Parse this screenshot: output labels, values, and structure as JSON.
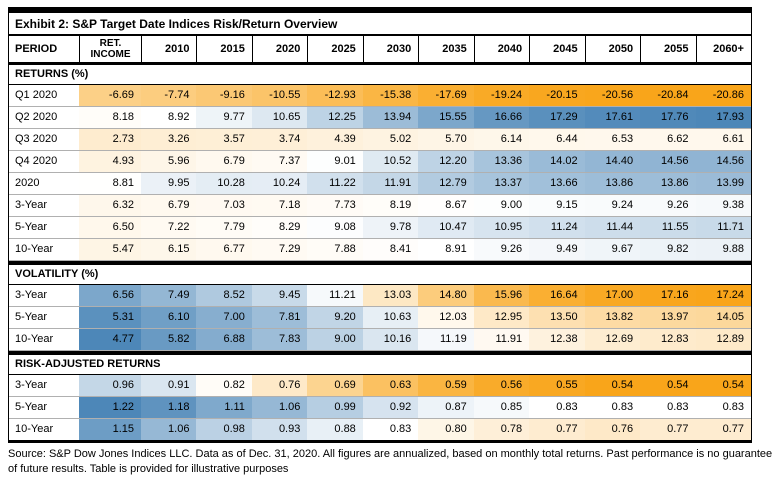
{
  "title": "Exhibit 2: S&P Target Date Indices Risk/Return Overview",
  "columns": [
    "PERIOD",
    "RET. INCOME",
    "2010",
    "2015",
    "2020",
    "2025",
    "2030",
    "2035",
    "2040",
    "2045",
    "2050",
    "2055",
    "2060+"
  ],
  "colors": {
    "deep_orange": "#F9A51A",
    "mid_white": "#FFFFFF",
    "deep_blue": "#4D87B8",
    "border_black": "#000000",
    "row_line_gray": "#B0B0B0"
  },
  "sections": [
    {
      "label": "RETURNS (%)",
      "scale": {
        "low": "#F9A51A",
        "mid": "#FFFFFF",
        "high": "#4D87B8"
      },
      "rows": [
        {
          "label": "Q1 2020",
          "values": [
            -6.69,
            -7.74,
            -9.16,
            -10.55,
            -12.93,
            -15.38,
            -17.69,
            -19.24,
            -20.15,
            -20.56,
            -20.84,
            -20.86
          ]
        },
        {
          "label": "Q2 2020",
          "values": [
            8.18,
            8.92,
            9.77,
            10.65,
            12.25,
            13.94,
            15.55,
            16.66,
            17.29,
            17.61,
            17.76,
            17.93
          ]
        },
        {
          "label": "Q3 2020",
          "values": [
            2.73,
            3.26,
            3.57,
            3.74,
            4.39,
            5.02,
            5.7,
            6.14,
            6.44,
            6.53,
            6.62,
            6.61
          ]
        },
        {
          "label": "Q4 2020",
          "values": [
            4.93,
            5.96,
            6.79,
            7.37,
            9.01,
            10.52,
            12.2,
            13.36,
            14.02,
            14.4,
            14.56,
            14.56
          ]
        },
        {
          "label": "2020",
          "values": [
            8.81,
            9.95,
            10.28,
            10.24,
            11.22,
            11.91,
            12.79,
            13.37,
            13.66,
            13.86,
            13.86,
            13.99
          ]
        },
        {
          "label": "3-Year",
          "values": [
            6.32,
            6.79,
            7.03,
            7.18,
            7.73,
            8.19,
            8.67,
            9.0,
            9.15,
            9.24,
            9.26,
            9.38
          ]
        },
        {
          "label": "5-Year",
          "values": [
            6.5,
            7.22,
            7.79,
            8.29,
            9.08,
            9.78,
            10.47,
            10.95,
            11.24,
            11.44,
            11.55,
            11.71
          ]
        },
        {
          "label": "10-Year",
          "values": [
            5.47,
            6.15,
            6.77,
            7.29,
            7.88,
            8.41,
            8.91,
            9.26,
            9.49,
            9.67,
            9.82,
            9.88
          ]
        }
      ]
    },
    {
      "label": "VOLATILITY (%)",
      "scale": {
        "low": "#4D87B8",
        "mid": "#FFFFFF",
        "high": "#F9A51A"
      },
      "rows": [
        {
          "label": "3-Year",
          "values": [
            6.56,
            7.49,
            8.52,
            9.45,
            11.21,
            13.03,
            14.8,
            15.96,
            16.64,
            17.0,
            17.16,
            17.24
          ]
        },
        {
          "label": "5-Year",
          "values": [
            5.31,
            6.1,
            7.0,
            7.81,
            9.2,
            10.63,
            12.03,
            12.95,
            13.5,
            13.82,
            13.97,
            14.05
          ]
        },
        {
          "label": "10-Year",
          "values": [
            4.77,
            5.82,
            6.88,
            7.83,
            9.0,
            10.16,
            11.19,
            11.91,
            12.38,
            12.69,
            12.83,
            12.89
          ]
        }
      ]
    },
    {
      "label": "RISK-ADJUSTED RETURNS",
      "scale": {
        "low": "#F9A51A",
        "mid": "#FFFFFF",
        "high": "#4D87B8"
      },
      "rows": [
        {
          "label": "3-Year",
          "values": [
            0.96,
            0.91,
            0.82,
            0.76,
            0.69,
            0.63,
            0.59,
            0.56,
            0.55,
            0.54,
            0.54,
            0.54
          ]
        },
        {
          "label": "5-Year",
          "values": [
            1.22,
            1.18,
            1.11,
            1.06,
            0.99,
            0.92,
            0.87,
            0.85,
            0.83,
            0.83,
            0.83,
            0.83
          ]
        },
        {
          "label": "10-Year",
          "values": [
            1.15,
            1.06,
            0.98,
            0.93,
            0.88,
            0.83,
            0.8,
            0.78,
            0.77,
            0.76,
            0.77,
            0.77
          ]
        }
      ]
    }
  ],
  "footer_text": "Source: S&P Dow Jones Indices LLC.  Data as of Dec. 31, 2020.  All figures are annualized, based on monthly total returns.  Past performance is no guarantee of future results.  Table is provided for illustrative purposes"
}
